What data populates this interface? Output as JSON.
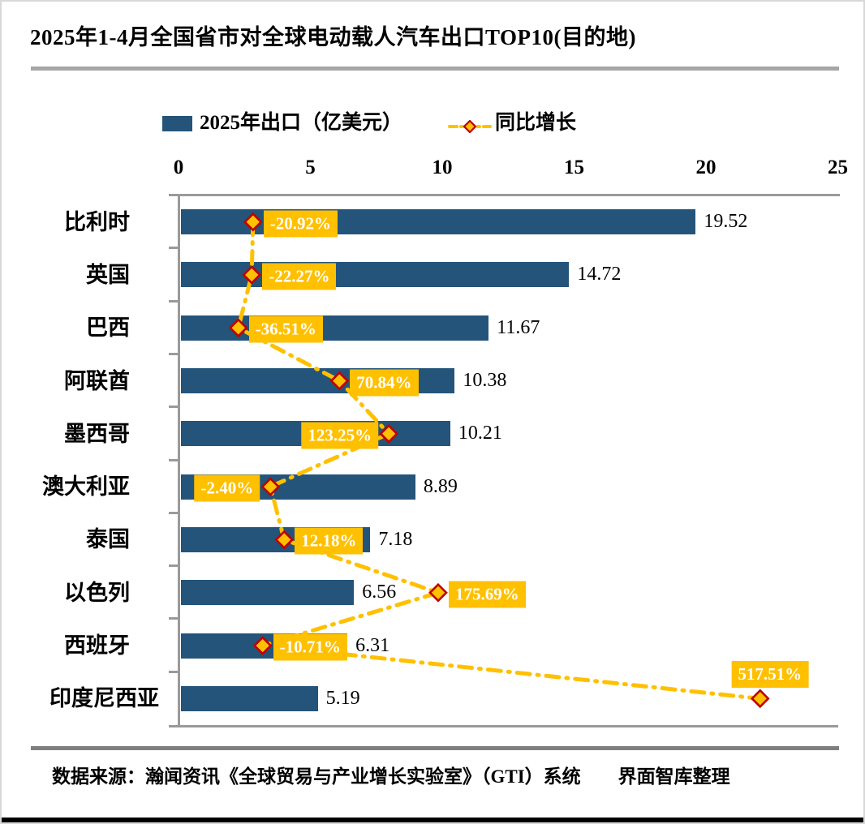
{
  "title": "2025年1-4月全国省市对全球电动载人汽车出口TOP10(目的地)",
  "legend": {
    "bar_label": "2025年出口（亿美元）",
    "line_label": "同比增长"
  },
  "footer": {
    "source_text": "数据来源：瀚闻资讯《全球贸易与产业增长实验室》（GTI）系统　　界面智库整理"
  },
  "colors": {
    "bar": "#24547a",
    "gold": "#ffc000",
    "marker_border": "#c00000",
    "axis_gray": "#9a9a9a",
    "growth_label_text": "#ffffff"
  },
  "chart_data": {
    "type": "bar",
    "orientation": "horizontal",
    "title": "2025年1-4月全国省市对全球电动载人汽车出口TOP10(目的地)",
    "categories": [
      "比利时",
      "英国",
      "巴西",
      "阿联酋",
      "墨西哥",
      "澳大利亚",
      "泰国",
      "以色列",
      "西班牙",
      "印度尼西亚"
    ],
    "series": [
      {
        "name": "2025年出口（亿美元）",
        "type": "bar",
        "axis": "primary",
        "values": [
          19.52,
          14.72,
          11.67,
          10.38,
          10.21,
          8.89,
          7.18,
          6.56,
          6.31,
          5.19
        ],
        "value_labels": [
          "19.52",
          "14.72",
          "11.67",
          "10.38",
          "10.21",
          "8.89",
          "7.18",
          "6.56",
          "6.31",
          "5.19"
        ]
      },
      {
        "name": "同比增长",
        "type": "line",
        "line_style": "dash-dot",
        "marker": "diamond",
        "axis": "secondary",
        "values": [
          -20.92,
          -22.27,
          -36.51,
          70.84,
          123.25,
          -2.4,
          12.18,
          175.69,
          -10.71,
          517.51
        ],
        "value_labels": [
          "-20.92%",
          "-22.27%",
          "-36.51%",
          "70.84%",
          "123.25%",
          "-2.40%",
          "12.18%",
          "175.69%",
          "-10.71%",
          "517.51%"
        ],
        "label_placement": [
          "right",
          "right",
          "right",
          "right",
          "left",
          "left",
          "right",
          "right",
          "right",
          "above"
        ]
      }
    ],
    "value_axis": {
      "position": "top",
      "ticks": [
        "0",
        "5",
        "10",
        "15",
        "20",
        "25"
      ],
      "range": [
        0,
        25
      ]
    },
    "secondary_value_axis": {
      "visible": false,
      "range": [
        -100,
        600
      ]
    },
    "legend_position": "top",
    "grid": false
  }
}
